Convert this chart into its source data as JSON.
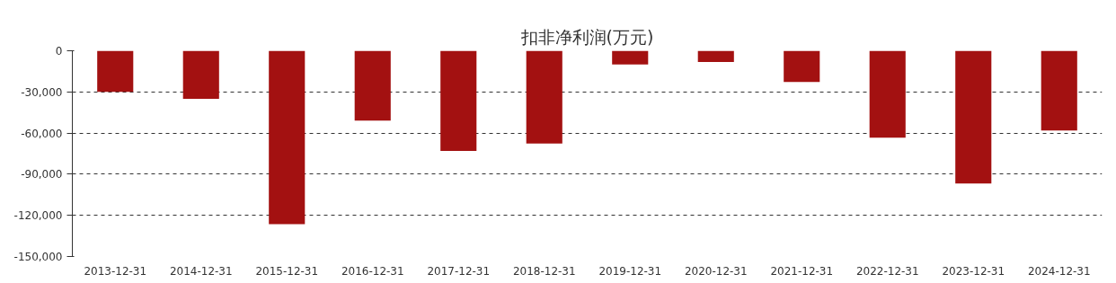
{
  "chart_data": {
    "type": "bar",
    "title": "扣非净利润(万元)",
    "categories": [
      "2013-12-31",
      "2014-12-31",
      "2015-12-31",
      "2016-12-31",
      "2017-12-31",
      "2018-12-31",
      "2019-12-31",
      "2020-12-31",
      "2021-12-31",
      "2022-12-31",
      "2023-12-31",
      "2024-12-31"
    ],
    "values": [
      -30000,
      -35000,
      -126500,
      -51000,
      -73000,
      -67600,
      -10000,
      -8200,
      -22800,
      -63400,
      -96800,
      -58100
    ],
    "color": "#a31111",
    "ylim": [
      -150000,
      0
    ],
    "yticks": [
      {
        "value": -150000,
        "label": "-150,000"
      },
      {
        "value": -120000,
        "label": "-120,000"
      },
      {
        "value": -90000,
        "label": "-90,000"
      },
      {
        "value": -60000,
        "label": "-60,000"
      },
      {
        "value": -30000,
        "label": "-30,000"
      },
      0
    ],
    "grid": "y"
  }
}
